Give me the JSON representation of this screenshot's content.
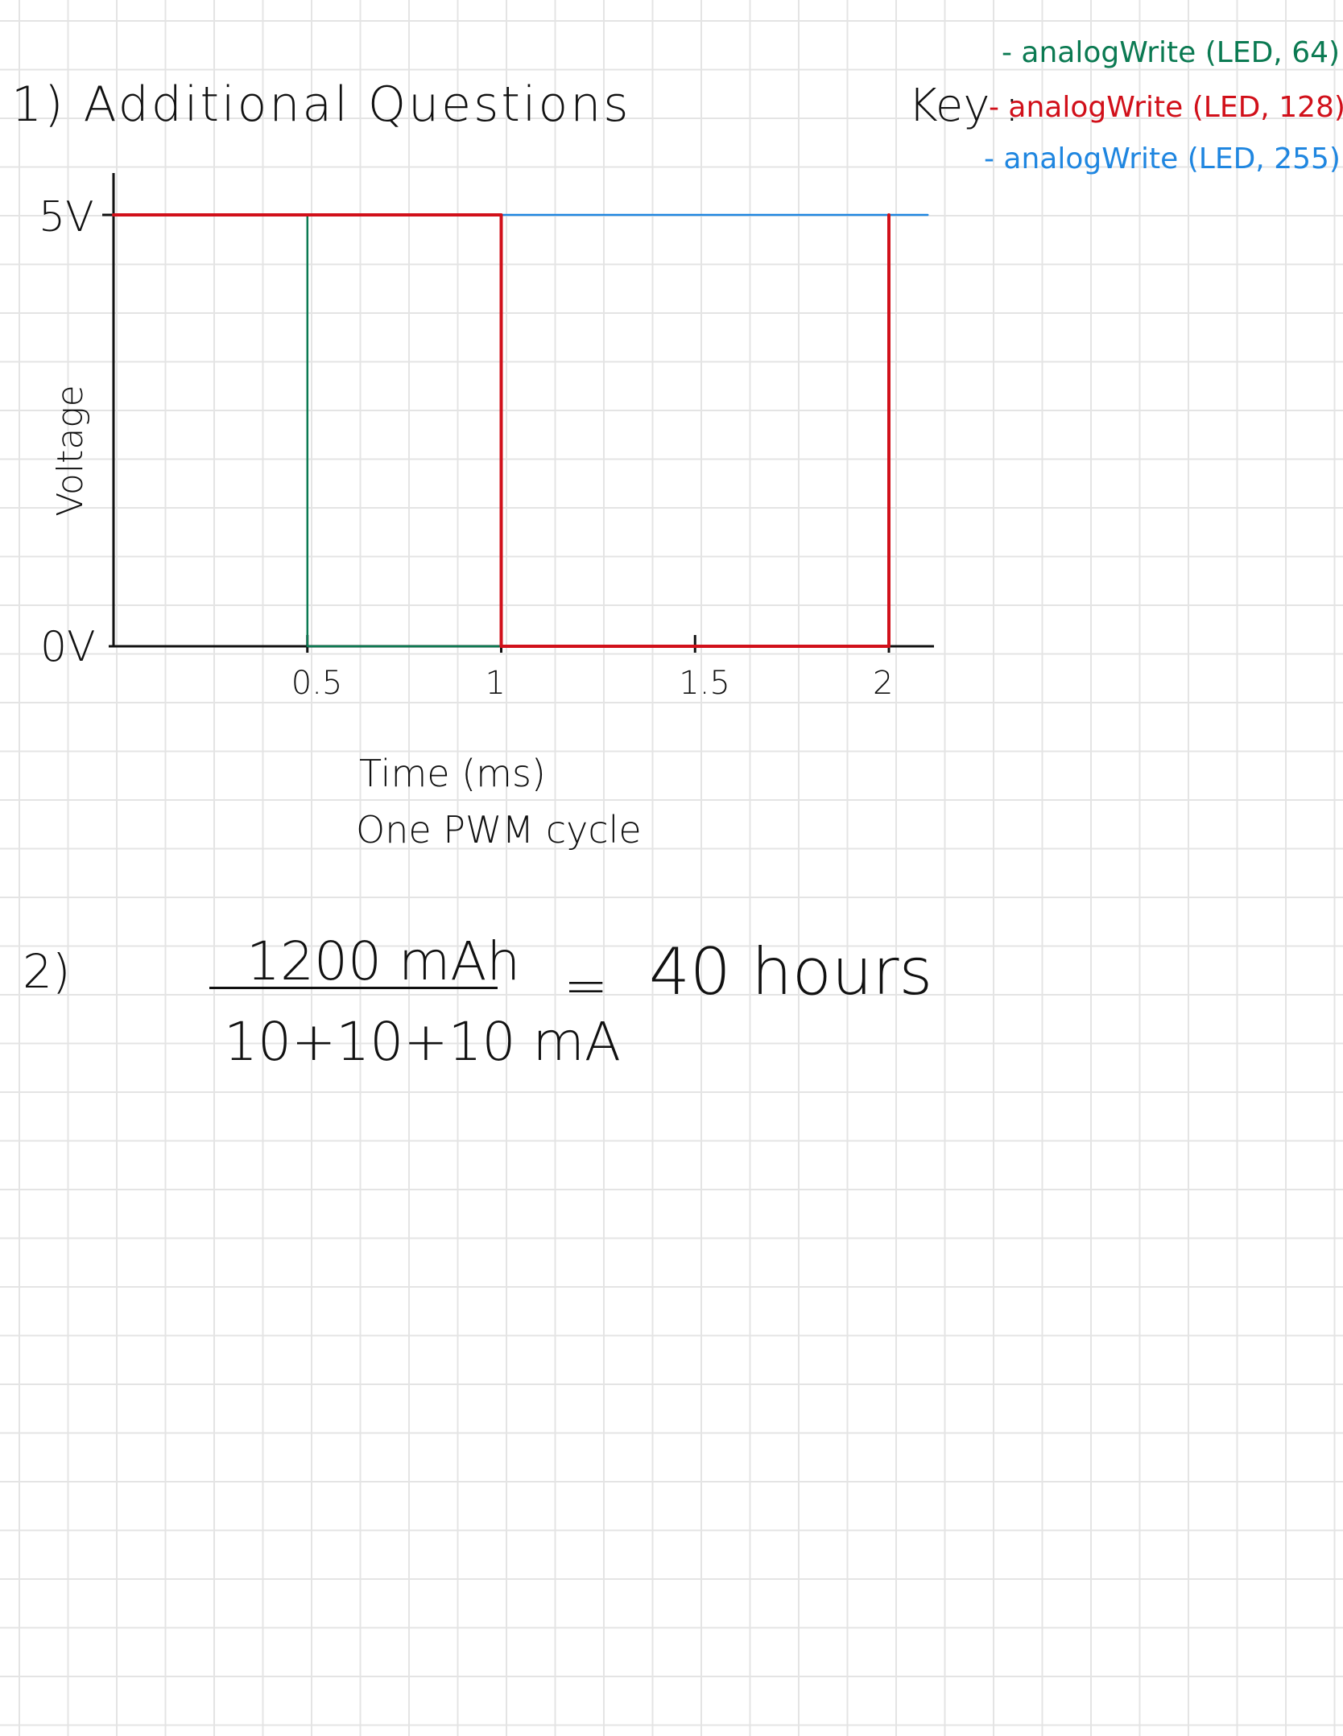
{
  "page": {
    "heading": "1) Additional Questions",
    "key_label": "Key :",
    "legend": [
      {
        "name": "- analogWrite (LED, 64)",
        "color": "#0b7a52"
      },
      {
        "name": "- analogWrite (LED, 128)",
        "color": "#d1101a"
      },
      {
        "name": "- analogWrite (LED, 255)",
        "color": "#1f86e0"
      }
    ],
    "question2": {
      "number": "2)",
      "numerator": "1200 mAh",
      "denominator": "10+10+10 mA",
      "equals": "=",
      "result": "40 hours"
    }
  },
  "chart_data": {
    "type": "line",
    "title": "",
    "xlabel": "Time (ms)",
    "caption": "One PWM cycle",
    "ylabel": "Voltage",
    "x_ticks": [
      "0.5",
      "1",
      "1.5",
      "2"
    ],
    "y_ticks": [
      "5V",
      "0V"
    ],
    "xlim": [
      0,
      2
    ],
    "ylim": [
      0,
      5
    ],
    "series": [
      {
        "name": "- analogWrite (LED, 64)",
        "color": "#0b7a52",
        "x": [
          0,
          0.5,
          0.5,
          2,
          2
        ],
        "y": [
          5,
          5,
          0,
          0,
          5
        ]
      },
      {
        "name": "- analogWrite (LED, 128)",
        "color": "#d1101a",
        "x": [
          0,
          1,
          1,
          2,
          2
        ],
        "y": [
          5,
          5,
          0,
          0,
          5
        ]
      },
      {
        "name": "- analogWrite (LED, 255)",
        "color": "#1f86e0",
        "x": [
          0,
          2.1
        ],
        "y": [
          5,
          5
        ]
      }
    ]
  }
}
